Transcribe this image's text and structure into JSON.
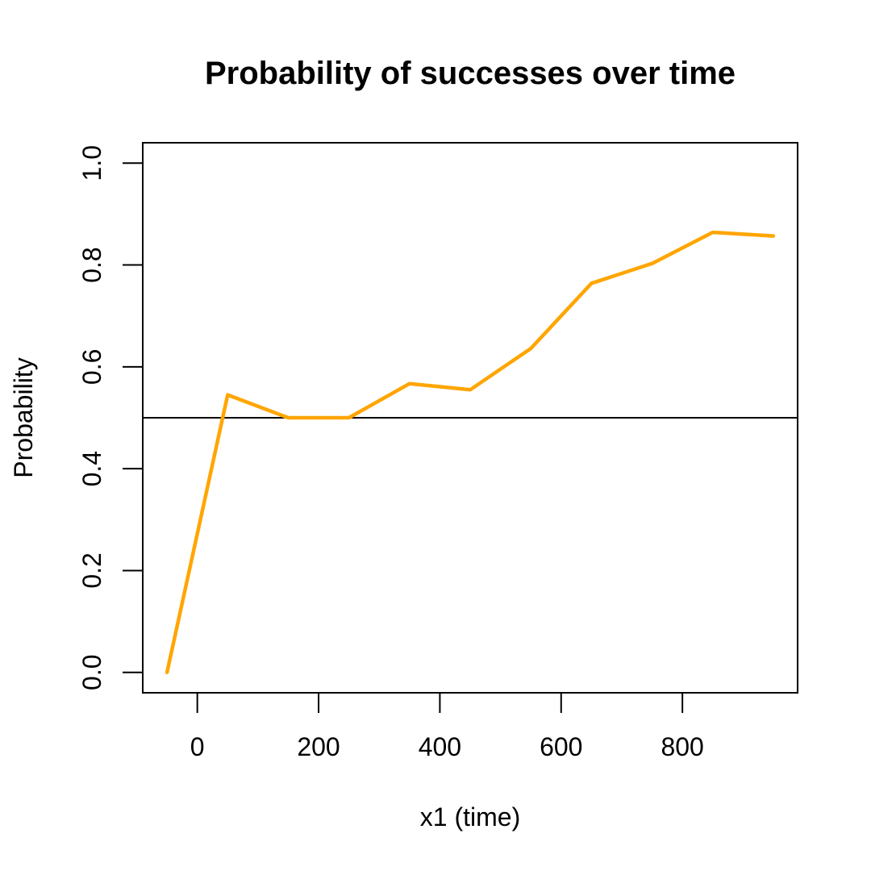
{
  "chart_data": {
    "type": "line",
    "title": "Probability of successes over time",
    "xlabel": "x1 (time)",
    "ylabel": "Probability",
    "xlim": [
      -90,
      990
    ],
    "ylim": [
      -0.04,
      1.04
    ],
    "x_ticks": [
      0,
      200,
      400,
      600,
      800
    ],
    "x_tick_labels": [
      "0",
      "200",
      "400",
      "600",
      "800"
    ],
    "y_ticks": [
      0.0,
      0.2,
      0.4,
      0.6,
      0.8,
      1.0
    ],
    "y_tick_labels": [
      "0.0",
      "0.2",
      "0.4",
      "0.6",
      "0.8",
      "1.0"
    ],
    "series": [
      {
        "color": "#FFA500",
        "x": [
          -50,
          50,
          150,
          250,
          350,
          450,
          550,
          650,
          750,
          850,
          950
        ],
        "y": [
          0.0,
          0.545,
          0.5,
          0.5,
          0.567,
          0.555,
          0.636,
          0.764,
          0.803,
          0.864,
          0.857
        ]
      }
    ],
    "reference_lines": [
      {
        "orientation": "horizontal",
        "y": 0.5,
        "color": "#000000"
      }
    ],
    "grid": false,
    "legend": "none"
  }
}
